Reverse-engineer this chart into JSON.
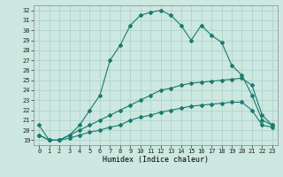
{
  "xlabel": "Humidex (Indice chaleur)",
  "bg_color": "#cce8e0",
  "line_color": "#1a7a6e",
  "grid_color": "#aacfc8",
  "ylim": [
    18.5,
    32.5
  ],
  "xlim": [
    -0.5,
    23.5
  ],
  "yticks": [
    19,
    20,
    21,
    22,
    23,
    24,
    25,
    26,
    27,
    28,
    29,
    30,
    31,
    32
  ],
  "xticks": [
    0,
    1,
    2,
    3,
    4,
    5,
    6,
    7,
    8,
    9,
    10,
    11,
    12,
    13,
    14,
    15,
    16,
    17,
    18,
    19,
    20,
    21,
    22,
    23
  ],
  "line1_x": [
    0,
    1,
    2,
    3,
    4,
    5,
    6,
    7,
    8,
    9,
    10,
    11,
    12,
    13,
    14,
    15,
    16,
    17,
    18,
    19,
    20,
    21,
    22,
    23
  ],
  "line1_y": [
    20.5,
    19.0,
    19.0,
    19.5,
    20.5,
    22.0,
    23.5,
    27.0,
    28.5,
    30.5,
    31.5,
    31.8,
    32.0,
    31.5,
    30.5,
    29.0,
    30.5,
    29.5,
    28.8,
    26.5,
    25.5,
    23.5,
    21.0,
    20.5
  ],
  "line2_x": [
    0,
    1,
    2,
    3,
    4,
    5,
    6,
    7,
    8,
    9,
    10,
    11,
    12,
    13,
    14,
    15,
    16,
    17,
    18,
    19,
    20,
    21,
    22,
    23
  ],
  "line2_y": [
    19.5,
    19.0,
    19.0,
    19.5,
    20.0,
    20.5,
    21.0,
    21.5,
    22.0,
    22.5,
    23.0,
    23.5,
    24.0,
    24.2,
    24.5,
    24.7,
    24.8,
    24.9,
    25.0,
    25.1,
    25.2,
    24.5,
    21.5,
    20.5
  ],
  "line3_x": [
    0,
    1,
    2,
    3,
    4,
    5,
    6,
    7,
    8,
    9,
    10,
    11,
    12,
    13,
    14,
    15,
    16,
    17,
    18,
    19,
    20,
    21,
    22,
    23
  ],
  "line3_y": [
    19.5,
    19.0,
    19.0,
    19.2,
    19.5,
    19.8,
    20.0,
    20.3,
    20.5,
    21.0,
    21.3,
    21.5,
    21.8,
    22.0,
    22.2,
    22.4,
    22.5,
    22.6,
    22.7,
    22.8,
    22.8,
    22.0,
    20.5,
    20.3
  ],
  "marker": "D",
  "marker_size": 2.0,
  "linewidth": 0.8,
  "tick_fontsize": 5.0,
  "xlabel_fontsize": 6.0
}
